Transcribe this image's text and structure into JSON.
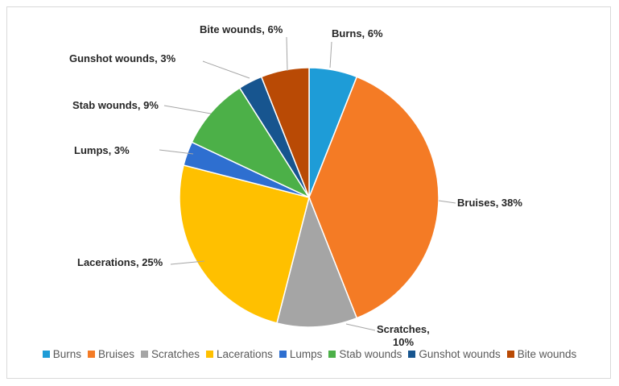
{
  "chart_data": {
    "type": "pie",
    "title": "",
    "slices": [
      {
        "name": "Burns",
        "value": 6,
        "label": "Burns, 6%",
        "color": "#1e9cd7"
      },
      {
        "name": "Bruises",
        "value": 38,
        "label": "Bruises, 38%",
        "color": "#f47b25"
      },
      {
        "name": "Scratches",
        "value": 10,
        "label": "Scratches, 10%",
        "color": "#a5a5a5"
      },
      {
        "name": "Lacerations",
        "value": 25,
        "label": "Lacerations, 25%",
        "color": "#ffc000"
      },
      {
        "name": "Lumps",
        "value": 3,
        "label": "Lumps, 3%",
        "color": "#2e6fd0"
      },
      {
        "name": "Stab wounds",
        "value": 9,
        "label": "Stab wounds, 9%",
        "color": "#4cb048"
      },
      {
        "name": "Gunshot wounds",
        "value": 3,
        "label": "Gunshot wounds, 3%",
        "color": "#17558f"
      },
      {
        "name": "Bite wounds",
        "value": 6,
        "label": "Bite wounds, 6%",
        "color": "#b94a05"
      }
    ],
    "legend_position": "bottom"
  }
}
